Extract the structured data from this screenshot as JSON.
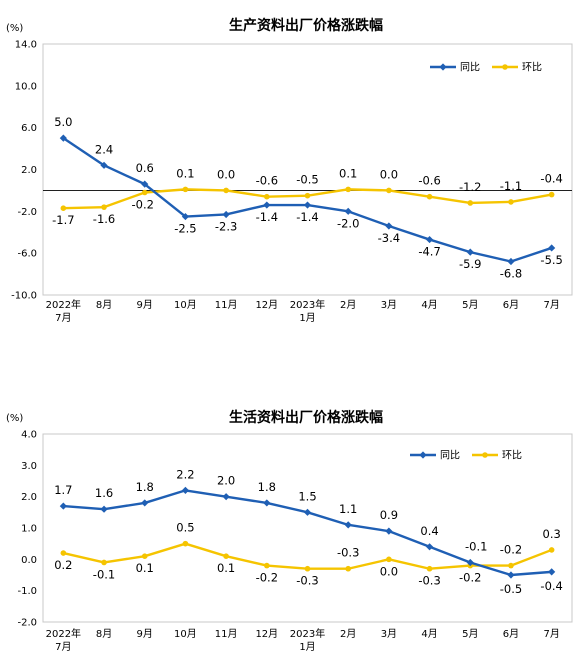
{
  "chart_data": [
    {
      "type": "line",
      "title": "生产资料出厂价格涨跌幅",
      "unit": "(%)",
      "y_ticks": [
        "14.0",
        "10.0",
        "6.0",
        "2.0",
        "-2.0",
        "-6.0",
        "-10.0"
      ],
      "ylim": [
        -10,
        14
      ],
      "x_labels": [
        [
          "2022年",
          "7月"
        ],
        [
          "8月"
        ],
        [
          "9月"
        ],
        [
          "10月"
        ],
        [
          "11月"
        ],
        [
          "12月"
        ],
        [
          "2023年",
          "1月"
        ],
        [
          "2月"
        ],
        [
          "3月"
        ],
        [
          "4月"
        ],
        [
          "5月"
        ],
        [
          "6月"
        ],
        [
          "7月"
        ]
      ],
      "grid": false,
      "legend_position": "top-right",
      "series": [
        {
          "name": "同比",
          "color": "#1f5fb4",
          "marker": "diamond",
          "values": [
            5.0,
            2.4,
            0.6,
            -2.5,
            -2.3,
            -1.4,
            -1.4,
            -2.0,
            -3.4,
            -4.7,
            -5.9,
            -6.8,
            -5.5
          ],
          "labels": [
            "5.0",
            "2.4",
            "0.6",
            "-2.5",
            "-2.3",
            "-1.4",
            "-1.4",
            "-2.0",
            "-3.4",
            "-4.7",
            "-5.9",
            "-6.8",
            "-5.5"
          ]
        },
        {
          "name": "环比",
          "color": "#f5c400",
          "marker": "circle",
          "values": [
            -1.7,
            -1.6,
            -0.2,
            0.1,
            0.0,
            -0.6,
            -0.5,
            0.1,
            0.0,
            -0.6,
            -1.2,
            -1.1,
            -0.4
          ],
          "labels": [
            "-1.7",
            "-1.6",
            "-0.2",
            "0.1",
            "0.0",
            "-0.6",
            "-0.5",
            "0.1",
            "0.0",
            "-0.6",
            "-1.2",
            "-1.1",
            "-0.4"
          ]
        }
      ]
    },
    {
      "type": "line",
      "title": "生活资料出厂价格涨跌幅",
      "unit": "(%)",
      "y_ticks": [
        "4.0",
        "3.0",
        "2.0",
        "1.0",
        "0.0",
        "-1.0",
        "-2.0"
      ],
      "ylim": [
        -2,
        4
      ],
      "x_labels": [
        [
          "2022年",
          "7月"
        ],
        [
          "8月"
        ],
        [
          "9月"
        ],
        [
          "10月"
        ],
        [
          "11月"
        ],
        [
          "12月"
        ],
        [
          "2023年",
          "1月"
        ],
        [
          "2月"
        ],
        [
          "3月"
        ],
        [
          "4月"
        ],
        [
          "5月"
        ],
        [
          "6月"
        ],
        [
          "7月"
        ]
      ],
      "grid": false,
      "legend_position": "top-right",
      "series": [
        {
          "name": "同比",
          "color": "#1f5fb4",
          "marker": "diamond",
          "values": [
            1.7,
            1.6,
            1.8,
            2.2,
            2.0,
            1.8,
            1.5,
            1.1,
            0.9,
            0.4,
            -0.1,
            -0.5,
            -0.4
          ],
          "labels": [
            "1.7",
            "1.6",
            "1.8",
            "2.2",
            "2.0",
            "1.8",
            "1.5",
            "1.1",
            "0.9",
            "0.4",
            "-0.1",
            "-0.5",
            "-0.4"
          ]
        },
        {
          "name": "环比",
          "color": "#f5c400",
          "marker": "circle",
          "values": [
            0.2,
            -0.1,
            0.1,
            0.5,
            0.1,
            -0.2,
            -0.3,
            -0.3,
            0.0,
            -0.3,
            -0.2,
            -0.2,
            0.3
          ],
          "labels": [
            "0.2",
            "-0.1",
            "0.1",
            "0.5",
            "0.1",
            "-0.2",
            "-0.3",
            "-0.3",
            "0.0",
            "-0.3",
            "-0.2",
            "-0.2",
            "0.3"
          ]
        }
      ]
    }
  ]
}
